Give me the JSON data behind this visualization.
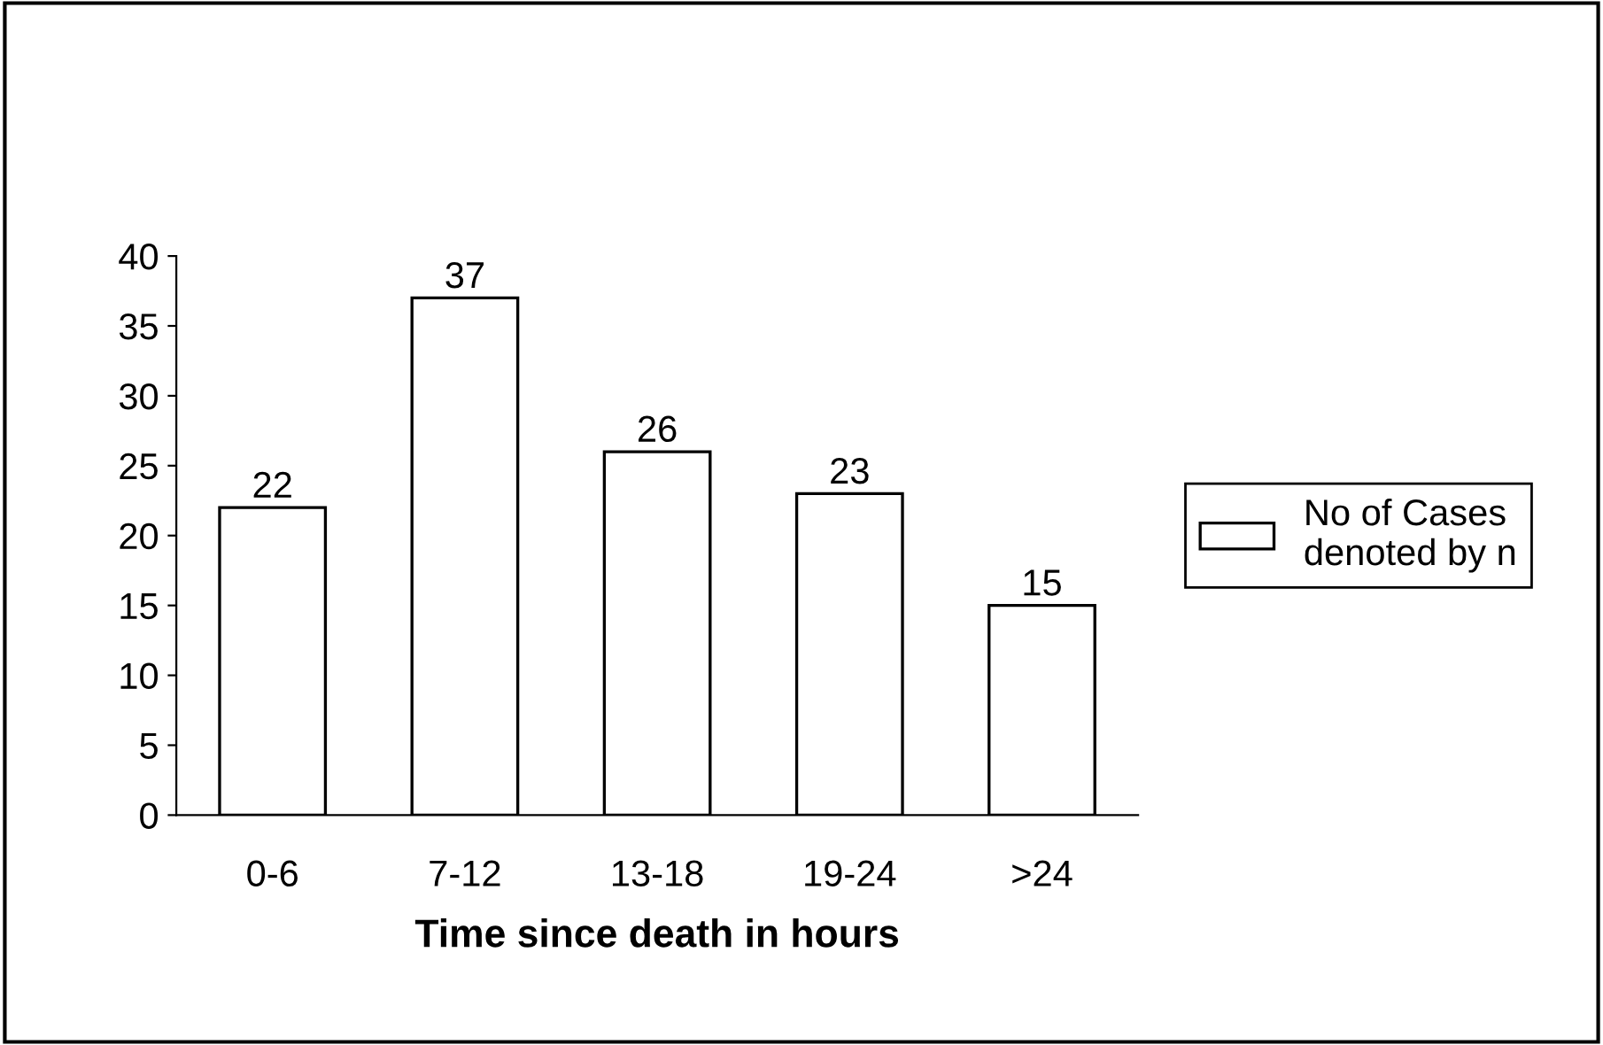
{
  "chart_data": {
    "type": "bar",
    "xlabel": "Time since death in hours",
    "categories": [
      "0-6",
      "7-12",
      "13-18",
      "19-24",
      ">24"
    ],
    "series": [
      {
        "name": "No of Cases\ndenoted by n",
        "color": "#ffffff",
        "values": [
          22,
          37,
          26,
          23,
          15
        ]
      }
    ],
    "ylim": [
      0,
      40
    ],
    "yticks": [
      0,
      5,
      10,
      15,
      20,
      25,
      30,
      35,
      40
    ],
    "data_labels": true,
    "legend": "right",
    "grid": false
  }
}
